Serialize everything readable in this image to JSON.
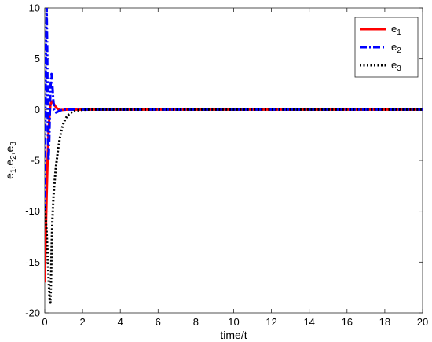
{
  "chart_data": {
    "type": "line",
    "xlabel": "time/t",
    "ylabel": "e1,e2,e3",
    "xlim": [
      0,
      20
    ],
    "ylim": [
      -20,
      10
    ],
    "xticks": [
      0,
      2,
      4,
      6,
      8,
      10,
      12,
      14,
      16,
      18,
      20
    ],
    "yticks": [
      -20,
      -15,
      -10,
      -5,
      0,
      5,
      10
    ],
    "grid": false,
    "legend_position": "top-right",
    "series": [
      {
        "name": "e1",
        "color": "#ff0000",
        "style": "solid",
        "x": [
          0,
          0.05,
          0.1,
          0.15,
          0.2,
          0.25,
          0.3,
          0.35,
          0.4,
          0.5,
          0.6,
          0.7,
          0.8,
          1.0,
          1.2,
          1.5,
          2.0,
          5,
          10,
          15,
          20
        ],
        "y": [
          -17,
          -12.5,
          -8.5,
          -5,
          -2.2,
          -0.6,
          0.4,
          0.8,
          0.8,
          0.5,
          0.2,
          0.05,
          -0.05,
          -0.03,
          0,
          0,
          0,
          0,
          0,
          0,
          0
        ]
      },
      {
        "name": "e2",
        "color": "#0000ff",
        "style": "dashdot",
        "x": [
          0,
          0.03,
          0.06,
          0.1,
          0.13,
          0.16,
          0.2,
          0.24,
          0.28,
          0.32,
          0.36,
          0.4,
          0.45,
          0.5,
          0.6,
          0.7,
          0.8,
          1.0,
          1.2,
          1.5,
          2.0,
          5,
          10,
          15,
          20
        ],
        "y": [
          -10,
          -2,
          6,
          10,
          6,
          -2,
          -5,
          -3,
          0.5,
          2.8,
          3.5,
          2.5,
          1,
          0,
          -0.3,
          -0.2,
          -0.1,
          0,
          0,
          0,
          0,
          0,
          0,
          0,
          0
        ]
      },
      {
        "name": "e3",
        "color": "#000000",
        "style": "dotted",
        "x": [
          0,
          0.1,
          0.2,
          0.25,
          0.3,
          0.33,
          0.36,
          0.4,
          0.45,
          0.5,
          0.6,
          0.7,
          0.8,
          0.9,
          1.0,
          1.1,
          1.2,
          1.35,
          1.5,
          1.7,
          2.0,
          2.5,
          5,
          10,
          15,
          20
        ],
        "y": [
          -9.5,
          -12,
          -16.5,
          -18.5,
          -19,
          -17,
          -14,
          -11,
          -9,
          -7.5,
          -5.5,
          -4,
          -2.8,
          -1.9,
          -1.3,
          -0.9,
          -0.6,
          -0.35,
          -0.2,
          -0.1,
          -0.03,
          0,
          0,
          0,
          0,
          0
        ]
      }
    ]
  }
}
